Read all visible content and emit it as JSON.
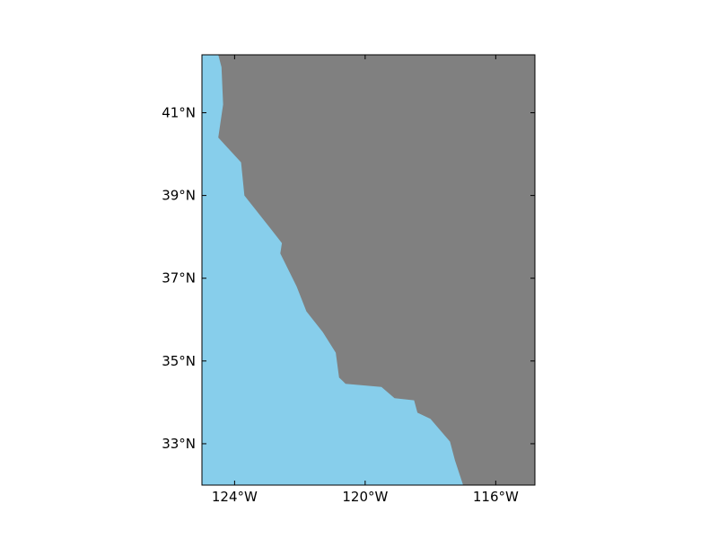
{
  "map": {
    "projection": "plate-carree",
    "extent": {
      "lon_min": -125.0,
      "lon_max": -114.8,
      "lat_min": 32.0,
      "lat_max": 42.4
    },
    "colors": {
      "ocean": "#87ceeb",
      "land": "#808080",
      "frame": "#000000"
    },
    "x_ticks": [
      {
        "value": -124,
        "label": "124°W"
      },
      {
        "value": -120,
        "label": "120°W"
      },
      {
        "value": -116,
        "label": "116°W"
      }
    ],
    "y_ticks": [
      {
        "value": 41,
        "label": "41°N"
      },
      {
        "value": 39,
        "label": "39°N"
      },
      {
        "value": 37,
        "label": "37°N"
      },
      {
        "value": 35,
        "label": "35°N"
      },
      {
        "value": 33,
        "label": "33°N"
      }
    ],
    "coastline": [
      [
        -124.5,
        42.4
      ],
      [
        -124.4,
        42.1
      ],
      [
        -124.35,
        41.2
      ],
      [
        -124.5,
        40.4
      ],
      [
        -123.8,
        39.8
      ],
      [
        -123.7,
        39.0
      ],
      [
        -122.9,
        38.2
      ],
      [
        -122.55,
        37.85
      ],
      [
        -122.6,
        37.6
      ],
      [
        -122.1,
        36.8
      ],
      [
        -121.8,
        36.2
      ],
      [
        -121.3,
        35.7
      ],
      [
        -120.9,
        35.2
      ],
      [
        -120.8,
        34.6
      ],
      [
        -120.6,
        34.45
      ],
      [
        -119.5,
        34.37
      ],
      [
        -119.1,
        34.1
      ],
      [
        -118.5,
        34.05
      ],
      [
        -118.4,
        33.75
      ],
      [
        -118.0,
        33.6
      ],
      [
        -117.4,
        33.05
      ],
      [
        -117.25,
        32.6
      ],
      [
        -117.0,
        32.0
      ]
    ]
  }
}
